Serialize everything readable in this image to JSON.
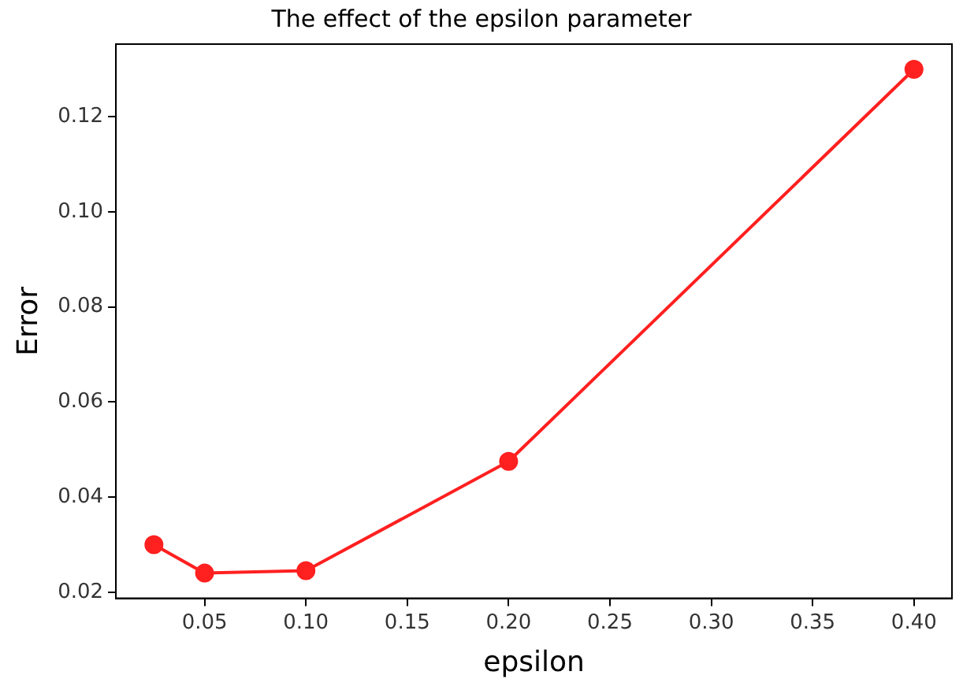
{
  "chart_data": {
    "type": "line",
    "title": "The effect of the epsilon parameter",
    "xlabel": "epsilon",
    "ylabel": "Error",
    "x": [
      0.025,
      0.05,
      0.1,
      0.2,
      0.4
    ],
    "series": [
      {
        "color": "#ff2020",
        "values": [
          0.03,
          0.024,
          0.0245,
          0.0475,
          0.13
        ]
      }
    ],
    "xlim": [
      0.00625,
      0.41875
    ],
    "xticks": [
      {
        "value": 0.05,
        "label": "0.05"
      },
      {
        "value": 0.1,
        "label": "0.10"
      },
      {
        "value": 0.15,
        "label": "0.15"
      },
      {
        "value": 0.2,
        "label": "0.20"
      },
      {
        "value": 0.25,
        "label": "0.25"
      },
      {
        "value": 0.3,
        "label": "0.30"
      },
      {
        "value": 0.35,
        "label": "0.35"
      },
      {
        "value": 0.4,
        "label": "0.40"
      }
    ],
    "ylim": [
      0.0187,
      0.1353
    ],
    "yticks": [
      {
        "value": 0.02,
        "label": "0.02"
      },
      {
        "value": 0.04,
        "label": "0.04"
      },
      {
        "value": 0.06,
        "label": "0.06"
      },
      {
        "value": 0.08,
        "label": "0.08"
      },
      {
        "value": 0.1,
        "label": "0.10"
      },
      {
        "value": 0.12,
        "label": "0.12"
      }
    ],
    "grid": false,
    "legend": false,
    "marker": "circle",
    "line_style": "solid"
  }
}
